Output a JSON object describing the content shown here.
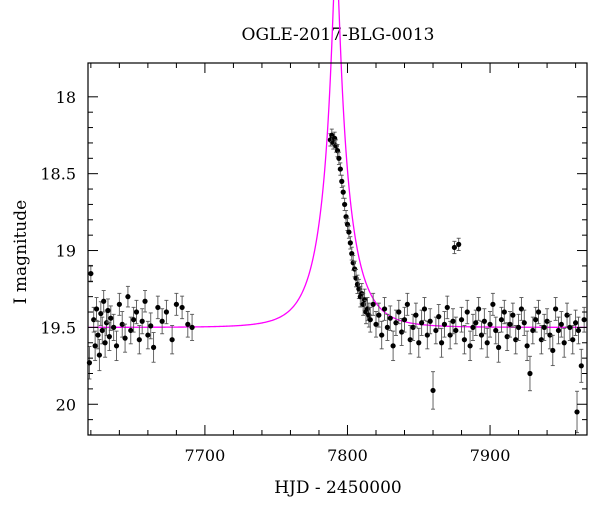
{
  "chart_data": {
    "type": "scatter",
    "title": "OGLE-2017-BLG-0013",
    "xlabel": "HJD - 2450000",
    "ylabel": "I magnitude",
    "xlim": [
      7618,
      7968
    ],
    "ylim": [
      17.78,
      20.2
    ],
    "y_inverted": true,
    "x_ticks": [
      7700,
      7800,
      7900
    ],
    "y_ticks": [
      18,
      18.5,
      19,
      19.5,
      20
    ],
    "grid": false,
    "colors": {
      "data": "#000000",
      "model": "#ff00ff"
    },
    "model": {
      "type": "point-lens microlensing",
      "t0": 7792,
      "u0": 0.11,
      "tE": 20,
      "baseline_mag": 19.5,
      "x_start": 7618,
      "x_end": 7968
    },
    "series": [
      {
        "x": [
          7619,
          7620,
          7622,
          7623,
          7624,
          7625,
          7626,
          7627,
          7628,
          7629,
          7630,
          7631,
          7632,
          7633,
          7634,
          7636,
          7638,
          7640,
          7642,
          7644,
          7646,
          7648,
          7650,
          7652,
          7654,
          7656,
          7658,
          7660,
          7662,
          7664,
          7667,
          7670,
          7673,
          7677,
          7680,
          7684,
          7688,
          7691,
          7788,
          7789,
          7790,
          7791,
          7792,
          7793,
          7794,
          7795,
          7796,
          7797,
          7798,
          7799,
          7800,
          7801,
          7802,
          7803,
          7804,
          7805,
          7806,
          7807,
          7808,
          7809,
          7810,
          7811,
          7812,
          7813,
          7814,
          7815,
          7816,
          7818,
          7820,
          7822,
          7824,
          7826,
          7828,
          7830,
          7832,
          7834,
          7836,
          7838,
          7840,
          7842,
          7844,
          7846,
          7848,
          7850,
          7852,
          7854,
          7856,
          7858,
          7860,
          7862,
          7864,
          7866,
          7868,
          7870,
          7872,
          7874,
          7875,
          7876,
          7878,
          7880,
          7882,
          7884,
          7886,
          7888,
          7890,
          7892,
          7894,
          7896,
          7898,
          7900,
          7902,
          7904,
          7906,
          7908,
          7910,
          7912,
          7914,
          7916,
          7918,
          7920,
          7922,
          7924,
          7926,
          7928,
          7930,
          7932,
          7934,
          7936,
          7938,
          7940,
          7942,
          7944,
          7946,
          7948,
          7950,
          7952,
          7954,
          7956,
          7958,
          7960,
          7961,
          7962,
          7964,
          7966
        ],
        "y": [
          19.73,
          19.15,
          19.45,
          19.62,
          19.38,
          19.55,
          19.68,
          19.41,
          19.52,
          19.33,
          19.6,
          19.47,
          19.39,
          19.56,
          19.44,
          19.5,
          19.62,
          19.35,
          19.48,
          19.57,
          19.3,
          19.52,
          19.45,
          19.4,
          19.58,
          19.46,
          19.33,
          19.55,
          19.49,
          19.63,
          19.37,
          19.46,
          19.4,
          19.58,
          19.35,
          19.37,
          19.48,
          19.5,
          18.28,
          18.25,
          18.3,
          18.27,
          18.32,
          18.35,
          18.4,
          18.47,
          18.55,
          18.62,
          18.7,
          18.78,
          18.83,
          18.88,
          18.95,
          19.02,
          19.08,
          19.12,
          19.18,
          19.22,
          19.25,
          19.3,
          19.28,
          19.35,
          19.32,
          19.4,
          19.38,
          19.42,
          19.45,
          19.35,
          19.48,
          19.42,
          19.55,
          19.38,
          19.5,
          19.44,
          19.62,
          19.47,
          19.4,
          19.53,
          19.45,
          19.35,
          19.58,
          19.5,
          19.42,
          19.6,
          19.47,
          19.38,
          19.55,
          19.46,
          19.91,
          19.52,
          19.43,
          19.6,
          19.48,
          19.37,
          19.55,
          19.46,
          18.98,
          19.52,
          18.96,
          19.45,
          19.58,
          19.4,
          19.62,
          19.5,
          19.47,
          19.38,
          19.55,
          19.46,
          19.6,
          19.48,
          19.35,
          19.52,
          19.63,
          19.45,
          19.4,
          19.56,
          19.48,
          19.42,
          19.58,
          19.5,
          19.38,
          19.47,
          19.62,
          19.8,
          19.52,
          19.45,
          19.4,
          19.58,
          19.5,
          19.46,
          19.55,
          19.65,
          19.38,
          19.52,
          19.48,
          19.6,
          19.42,
          19.5,
          19.58,
          19.47,
          20.05,
          19.52,
          19.75,
          19.45
        ]
      }
    ]
  }
}
